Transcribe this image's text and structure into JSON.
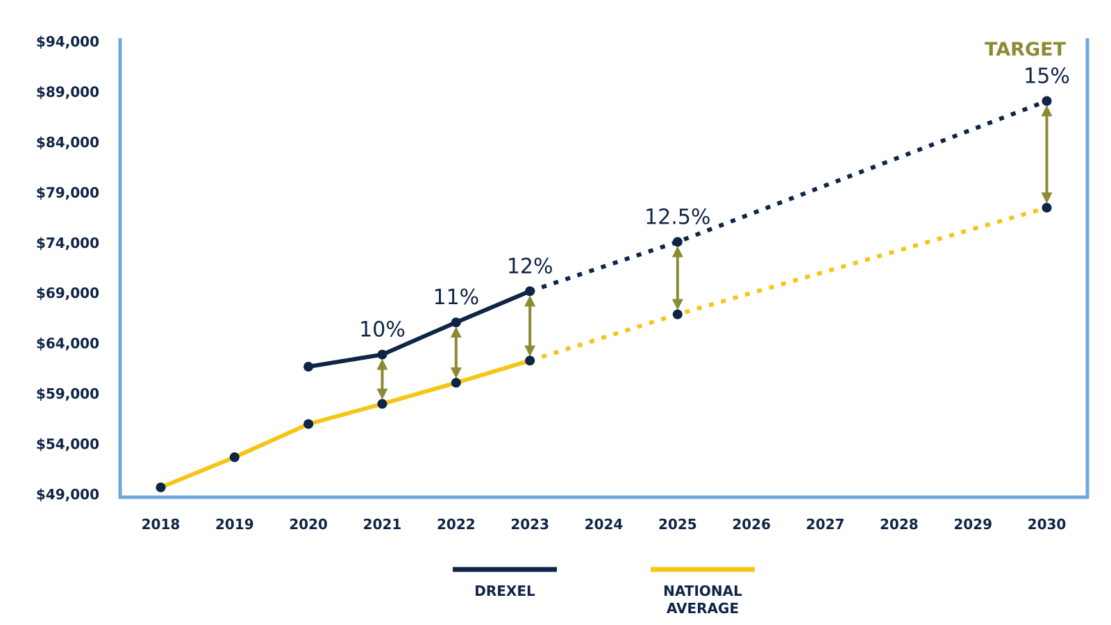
{
  "chart_data": {
    "type": "line",
    "x": [
      2018,
      2019,
      2020,
      2021,
      2022,
      2023,
      2024,
      2025,
      2026,
      2027,
      2028,
      2029,
      2030
    ],
    "x_tick_labels": [
      "2018",
      "2019",
      "2020",
      "2021",
      "2022",
      "2023",
      "2024",
      "2025",
      "2026",
      "2027",
      "2028",
      "2029",
      "2030"
    ],
    "y_tick_labels": [
      "$94,000",
      "$89,000",
      "$84,000",
      "$79,000",
      "$74,000",
      "$69,000",
      "$64,000",
      "$59,000",
      "$54,000",
      "$49,000"
    ],
    "y_ticks": [
      94000,
      89000,
      84000,
      79000,
      74000,
      69000,
      64000,
      59000,
      54000,
      49000
    ],
    "ylim": [
      49000,
      94000
    ],
    "xlim": [
      2017.45,
      2030.55
    ],
    "title": "",
    "xlabel": "",
    "ylabel": "",
    "grid": false,
    "legend_position": "bottom-center",
    "series": [
      {
        "name": "DREXEL",
        "color": "#0f2545",
        "actual": [
          [
            2020,
            61700
          ],
          [
            2021,
            62900
          ],
          [
            2022,
            66100
          ],
          [
            2023,
            69200
          ]
        ],
        "projected": [
          [
            2023,
            69200
          ],
          [
            2025,
            74100
          ],
          [
            2030,
            88100
          ]
        ],
        "markers": [
          [
            2020,
            61700
          ],
          [
            2021,
            62900
          ],
          [
            2022,
            66100
          ],
          [
            2023,
            69200
          ],
          [
            2025,
            74100
          ],
          [
            2030,
            88100
          ]
        ]
      },
      {
        "name": "NATIONAL\nAVERAGE",
        "color": "#f5c518",
        "actual": [
          [
            2018,
            49700
          ],
          [
            2019,
            52700
          ],
          [
            2020,
            56000
          ],
          [
            2021,
            58000
          ],
          [
            2022,
            60100
          ],
          [
            2023,
            62300
          ]
        ],
        "projected": [
          [
            2023,
            62300
          ],
          [
            2025,
            66900
          ],
          [
            2030,
            77500
          ]
        ],
        "markers": [
          [
            2018,
            49700
          ],
          [
            2019,
            52700
          ],
          [
            2020,
            56000
          ],
          [
            2021,
            58000
          ],
          [
            2022,
            60100
          ],
          [
            2023,
            62300
          ],
          [
            2025,
            66900
          ],
          [
            2030,
            77500
          ]
        ],
        "marker_color": "#0f2545"
      }
    ],
    "gap_arrows": [
      {
        "x": 2021,
        "low": 58000,
        "high": 62900
      },
      {
        "x": 2022,
        "low": 60100,
        "high": 66100
      },
      {
        "x": 2023,
        "low": 62300,
        "high": 69200
      },
      {
        "x": 2025,
        "low": 66900,
        "high": 74100
      },
      {
        "x": 2030,
        "low": 77500,
        "high": 88100
      }
    ],
    "annotations": [
      {
        "x": 2021,
        "y": 62900,
        "text": "10%"
      },
      {
        "x": 2022,
        "y": 66100,
        "text": "11%"
      },
      {
        "x": 2023,
        "y": 69200,
        "text": "12%"
      },
      {
        "x": 2025,
        "y": 74100,
        "text": "12.5%"
      },
      {
        "x": 2030,
        "y": 88100,
        "text": "15%"
      }
    ],
    "target_label": "TARGET",
    "colors": {
      "frame": "#6fa8dc",
      "arrow": "#8b8b35",
      "drexel": "#0f2545",
      "national": "#f5c518",
      "text": "#0f2545"
    },
    "legend": [
      {
        "label": "DREXEL",
        "color": "#0f2545"
      },
      {
        "label": "NATIONAL\nAVERAGE",
        "color": "#f5c518"
      }
    ]
  }
}
